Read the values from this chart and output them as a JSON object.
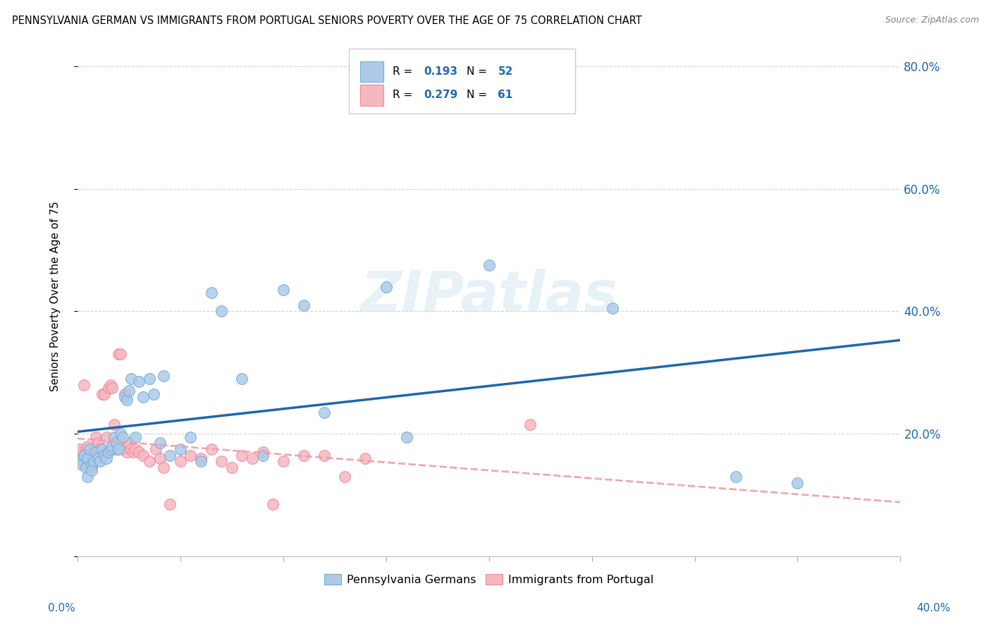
{
  "title": "PENNSYLVANIA GERMAN VS IMMIGRANTS FROM PORTUGAL SENIORS POVERTY OVER THE AGE OF 75 CORRELATION CHART",
  "source": "Source: ZipAtlas.com",
  "ylabel": "Seniors Poverty Over the Age of 75",
  "xlim": [
    0.0,
    0.4
  ],
  "ylim": [
    0.0,
    0.85
  ],
  "yticks": [
    0.0,
    0.2,
    0.4,
    0.6,
    0.8
  ],
  "ytick_labels": [
    "",
    "20.0%",
    "40.0%",
    "60.0%",
    "80.0%"
  ],
  "blue_color": "#aec9e8",
  "pink_color": "#f4b8c1",
  "blue_edge_color": "#6baed6",
  "pink_edge_color": "#f48498",
  "blue_line_color": "#2166ac",
  "pink_line_color": "#e8a0a8",
  "blue_scatter_x": [
    0.001,
    0.002,
    0.003,
    0.004,
    0.005,
    0.005,
    0.006,
    0.007,
    0.007,
    0.008,
    0.009,
    0.01,
    0.011,
    0.012,
    0.013,
    0.014,
    0.015,
    0.016,
    0.017,
    0.018,
    0.019,
    0.02,
    0.021,
    0.022,
    0.023,
    0.024,
    0.025,
    0.026,
    0.028,
    0.03,
    0.032,
    0.035,
    0.037,
    0.04,
    0.042,
    0.045,
    0.05,
    0.055,
    0.06,
    0.065,
    0.07,
    0.08,
    0.09,
    0.1,
    0.11,
    0.12,
    0.15,
    0.16,
    0.2,
    0.26,
    0.32,
    0.35
  ],
  "blue_scatter_y": [
    0.155,
    0.15,
    0.165,
    0.145,
    0.16,
    0.13,
    0.175,
    0.15,
    0.14,
    0.155,
    0.17,
    0.16,
    0.155,
    0.175,
    0.165,
    0.16,
    0.17,
    0.175,
    0.18,
    0.195,
    0.185,
    0.175,
    0.2,
    0.195,
    0.26,
    0.255,
    0.27,
    0.29,
    0.195,
    0.285,
    0.26,
    0.29,
    0.265,
    0.185,
    0.295,
    0.165,
    0.175,
    0.195,
    0.155,
    0.43,
    0.4,
    0.29,
    0.165,
    0.435,
    0.41,
    0.235,
    0.44,
    0.195,
    0.475,
    0.405,
    0.13,
    0.12
  ],
  "pink_scatter_x": [
    0.0,
    0.001,
    0.001,
    0.002,
    0.002,
    0.003,
    0.003,
    0.004,
    0.004,
    0.005,
    0.005,
    0.006,
    0.006,
    0.007,
    0.007,
    0.008,
    0.008,
    0.009,
    0.009,
    0.01,
    0.011,
    0.012,
    0.013,
    0.014,
    0.015,
    0.016,
    0.017,
    0.018,
    0.019,
    0.02,
    0.021,
    0.022,
    0.023,
    0.024,
    0.025,
    0.026,
    0.027,
    0.028,
    0.03,
    0.032,
    0.035,
    0.038,
    0.04,
    0.042,
    0.045,
    0.05,
    0.055,
    0.06,
    0.065,
    0.07,
    0.075,
    0.08,
    0.085,
    0.09,
    0.095,
    0.1,
    0.11,
    0.12,
    0.13,
    0.14,
    0.22
  ],
  "pink_scatter_y": [
    0.17,
    0.165,
    0.175,
    0.155,
    0.16,
    0.28,
    0.165,
    0.155,
    0.175,
    0.17,
    0.18,
    0.155,
    0.165,
    0.155,
    0.145,
    0.175,
    0.17,
    0.195,
    0.175,
    0.185,
    0.175,
    0.265,
    0.265,
    0.195,
    0.275,
    0.28,
    0.275,
    0.215,
    0.175,
    0.33,
    0.33,
    0.175,
    0.265,
    0.17,
    0.185,
    0.175,
    0.17,
    0.175,
    0.17,
    0.165,
    0.155,
    0.175,
    0.16,
    0.145,
    0.085,
    0.155,
    0.165,
    0.16,
    0.175,
    0.155,
    0.145,
    0.165,
    0.16,
    0.17,
    0.085,
    0.155,
    0.165,
    0.165,
    0.13,
    0.16,
    0.215
  ],
  "background_color": "#ffffff",
  "grid_color": "#d0d0d0"
}
